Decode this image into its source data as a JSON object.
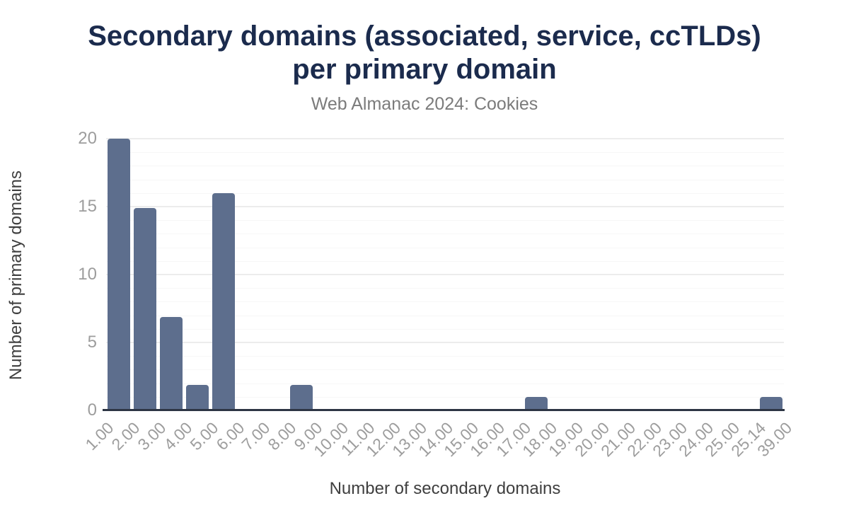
{
  "header": {
    "title_lines": [
      "Secondary domains (associated, service, ccTLDs)",
      "per primary domain"
    ],
    "subtitle": "Web Almanac 2024: Cookies"
  },
  "chart_data": {
    "type": "bar",
    "variant": "histogram",
    "title": "Secondary domains (associated, service, ccTLDs) per primary domain",
    "subtitle": "Web Almanac 2024: Cookies",
    "xlabel": "Number of secondary domains",
    "ylabel": "Number of primary domains",
    "bucket_boundary_labels": [
      "1.00",
      "2.00",
      "3.00",
      "4.00",
      "5.00",
      "6.00",
      "7.00",
      "8.00",
      "9.00",
      "10.00",
      "11.00",
      "12.00",
      "13.00",
      "14.00",
      "15.00",
      "16.00",
      "17.00",
      "18.00",
      "19.00",
      "20.00",
      "21.00",
      "22.00",
      "23.00",
      "24.00",
      "25.00",
      "25.14",
      "39.00"
    ],
    "values": [
      20,
      14.9,
      6.9,
      1.9,
      16,
      0,
      0,
      1.9,
      0,
      0,
      0,
      0,
      0,
      0,
      0,
      0,
      1,
      0,
      0,
      0,
      0,
      0,
      0,
      0,
      0,
      1
    ],
    "ylim": [
      0,
      20
    ],
    "yticks": [
      0,
      5,
      10,
      15,
      20
    ],
    "minor_grid_step": 1,
    "grid": "horizontal, major every 5 + faint minor every 1",
    "legend": "none",
    "colors": {
      "bar": "#5d6e8d",
      "title": "#1b2b4d",
      "subtitle": "#7b7b7b",
      "tick_label": "#9d9d9d",
      "axis_title": "#3f3f3f",
      "axis_line": "#2d3544",
      "major_grid": "#ececec",
      "minor_grid": "#f7f7f7"
    }
  }
}
